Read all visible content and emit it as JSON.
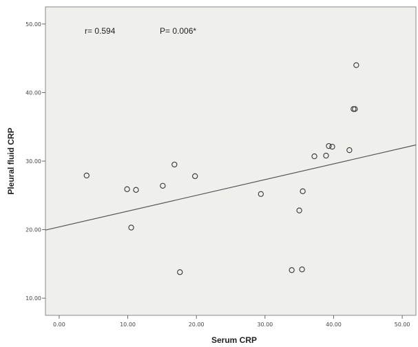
{
  "chart_data": {
    "type": "scatter",
    "xlabel": "Serum CRP",
    "ylabel": "Pleural fluid CRP",
    "xlim": [
      -2,
      52
    ],
    "ylim": [
      7.5,
      52.5
    ],
    "x_ticks": [
      "0.00",
      "10.00",
      "20.00",
      "30.00",
      "40.00",
      "50.00"
    ],
    "y_ticks": [
      "10.00",
      "20.00",
      "30.00",
      "40.00",
      "50.00"
    ],
    "x_tick_values": [
      0,
      10,
      20,
      30,
      40,
      50
    ],
    "y_tick_values": [
      10,
      20,
      30,
      40,
      50
    ],
    "grid": false,
    "annotations": {
      "r": "r= 0.594",
      "p": "P= 0.006*"
    },
    "fit_line": {
      "intercept": 20.4,
      "slope": 0.23
    },
    "points": [
      {
        "x": 4.0,
        "y": 27.9
      },
      {
        "x": 9.9,
        "y": 25.9
      },
      {
        "x": 10.5,
        "y": 20.3
      },
      {
        "x": 11.2,
        "y": 25.8
      },
      {
        "x": 15.1,
        "y": 26.4
      },
      {
        "x": 16.8,
        "y": 29.5
      },
      {
        "x": 17.6,
        "y": 13.8
      },
      {
        "x": 19.8,
        "y": 27.8
      },
      {
        "x": 29.4,
        "y": 25.2
      },
      {
        "x": 33.9,
        "y": 14.1
      },
      {
        "x": 35.0,
        "y": 22.8
      },
      {
        "x": 35.4,
        "y": 14.2
      },
      {
        "x": 35.5,
        "y": 25.6
      },
      {
        "x": 37.2,
        "y": 30.7
      },
      {
        "x": 38.9,
        "y": 30.8
      },
      {
        "x": 39.3,
        "y": 32.2
      },
      {
        "x": 39.8,
        "y": 32.1
      },
      {
        "x": 42.3,
        "y": 31.6
      },
      {
        "x": 42.9,
        "y": 37.6
      },
      {
        "x": 43.1,
        "y": 37.6
      },
      {
        "x": 43.3,
        "y": 44.0
      }
    ],
    "colors": {
      "plot_background": "#efefec",
      "marker_stroke": "#333333",
      "line": "#555555"
    }
  }
}
